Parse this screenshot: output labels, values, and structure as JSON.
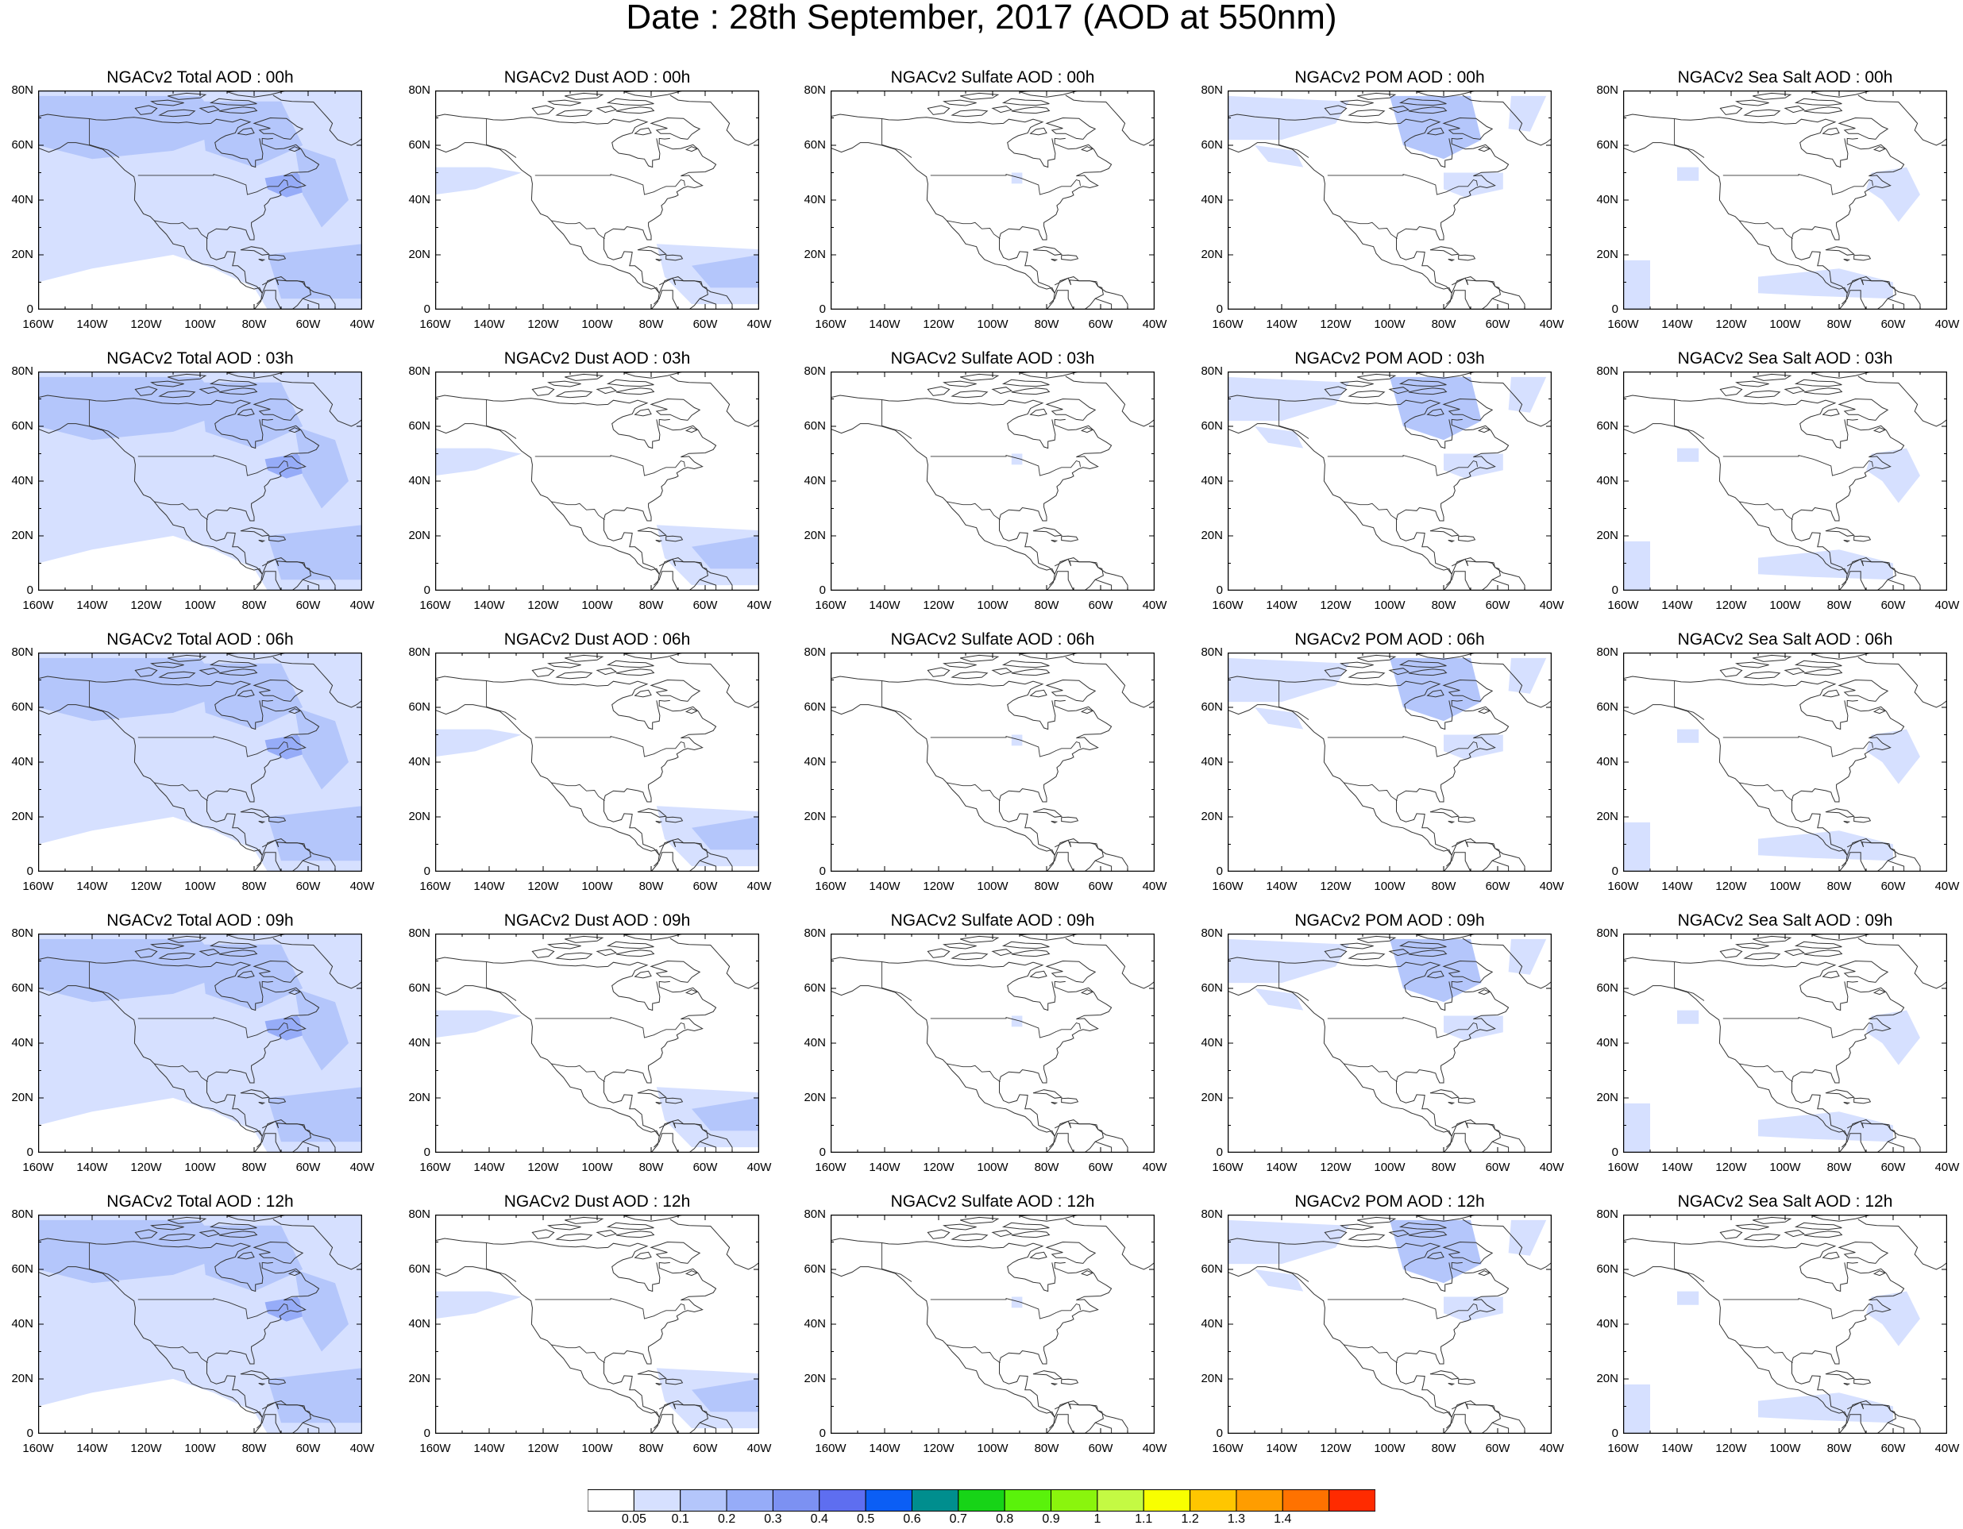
{
  "title": "Date : 28th September, 2017 (AOD at 550nm)",
  "axes": {
    "x_ticks": [
      "160W",
      "140W",
      "120W",
      "100W",
      "80W",
      "60W",
      "40W"
    ],
    "y_ticks": [
      "80N",
      "60N",
      "40N",
      "20N",
      "0"
    ],
    "lon_range": [
      -160,
      -40
    ],
    "lat_range": [
      0,
      80
    ]
  },
  "panels": [
    [
      "NGACv2 Total AOD : 00h",
      "NGACv2 Dust AOD : 00h",
      "NGACv2 Sulfate AOD : 00h",
      "NGACv2 POM AOD : 00h",
      "NGACv2 Sea Salt AOD : 00h"
    ],
    [
      "NGACv2 Total AOD : 03h",
      "NGACv2 Dust AOD : 03h",
      "NGACv2 Sulfate AOD : 03h",
      "NGACv2 POM AOD : 03h",
      "NGACv2 Sea Salt AOD : 03h"
    ],
    [
      "NGACv2 Total AOD : 06h",
      "NGACv2 Dust AOD : 06h",
      "NGACv2 Sulfate AOD : 06h",
      "NGACv2 POM AOD : 06h",
      "NGACv2 Sea Salt AOD : 06h"
    ],
    [
      "NGACv2 Total AOD : 09h",
      "NGACv2 Dust AOD : 09h",
      "NGACv2 Sulfate AOD : 09h",
      "NGACv2 POM AOD : 09h",
      "NGACv2 Sea Salt  AOD : 09h"
    ],
    [
      "NGACv2 Total AOD  : 12h",
      "NGACv2 Dust AOD : 12h",
      "NGACv2 Sulfate AOD : 12h",
      "NGACv2 POM  AOD : 12h",
      "NGACv2 Sea Salt  AOD : 12h"
    ]
  ],
  "legend": {
    "labels": [
      "0.05",
      "0.1",
      "0.2",
      "0.3",
      "0.4",
      "0.5",
      "0.6",
      "0.7",
      "0.8",
      "0.9",
      "1",
      "1.1",
      "1.2",
      "1.3",
      "1.4"
    ],
    "colors": [
      "#ffffff",
      "#d6e0ff",
      "#b4c6fb",
      "#96acf8",
      "#7c91f2",
      "#5e6ef0",
      "#0b5ef5",
      "#008e8e",
      "#17d417",
      "#5af20b",
      "#8af50d",
      "#c4fa43",
      "#f8ff00",
      "#ffc600",
      "#ff9d00",
      "#ff7200",
      "#ff2b00"
    ]
  },
  "species_colors": {
    "light": "#d6e0ff",
    "medium": "#b4c6fb",
    "strong": "#96acf8"
  }
}
